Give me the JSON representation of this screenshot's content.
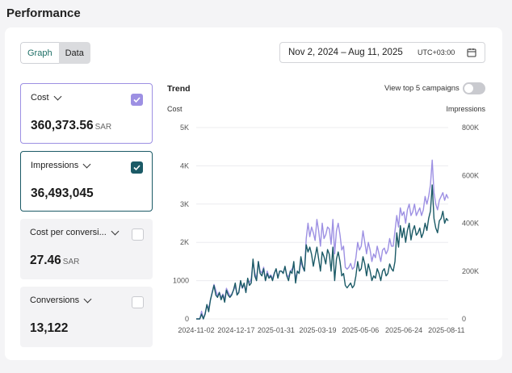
{
  "page": {
    "title": "Performance"
  },
  "view_toggle": {
    "graph_label": "Graph",
    "data_label": "Data",
    "active": "Graph"
  },
  "date_range": {
    "label": "Nov 2, 2024 – Aug 11, 2025",
    "timezone": "UTC+03:00"
  },
  "metrics": [
    {
      "label": "Cost",
      "value": "360,373.56",
      "unit": "SAR",
      "checked": true,
      "color": "#9d90e3"
    },
    {
      "label": "Impressions",
      "value": "36,493,045",
      "unit": "",
      "checked": true,
      "color": "#1b5a66"
    },
    {
      "label": "Cost per conversi...",
      "value": "27.46",
      "unit": "SAR",
      "checked": false
    },
    {
      "label": "Conversions",
      "value": "13,122",
      "unit": "",
      "checked": false
    }
  ],
  "trend": {
    "title": "Trend",
    "toggle_label": "View top 5 campaigns",
    "toggle_on": false
  },
  "colors": {
    "cost": "#9d90e3",
    "impressions": "#1b5a66",
    "accent": "#1e6f66"
  },
  "chart_data": {
    "type": "line",
    "title": "Trend",
    "ylabel_left": "Cost",
    "ylabel_right": "Impressions",
    "yticks_left": [
      "5K",
      "4K",
      "3K",
      "2K",
      "1000",
      "0"
    ],
    "yticks_right": [
      "800K",
      "600K",
      "400K",
      "200K",
      "0"
    ],
    "ylim_left": [
      0,
      5000
    ],
    "ylim_right": [
      0,
      800000
    ],
    "x_tick_labels": [
      "2024-11-02",
      "2024-12-17",
      "2025-01-31",
      "2025-03-19",
      "2025-05-06",
      "2025-06-24",
      "2025-08-11"
    ],
    "x_tick_positions": [
      0,
      45,
      90,
      137,
      185,
      234,
      282
    ],
    "series": [
      {
        "name": "Cost",
        "axis": "left",
        "points": [
          [
            0,
            0
          ],
          [
            4,
            0
          ],
          [
            6,
            200
          ],
          [
            8,
            0
          ],
          [
            10,
            150
          ],
          [
            12,
            350
          ],
          [
            14,
            280
          ],
          [
            16,
            500
          ],
          [
            18,
            700
          ],
          [
            20,
            900
          ],
          [
            22,
            750
          ],
          [
            24,
            600
          ],
          [
            26,
            700
          ],
          [
            28,
            550
          ],
          [
            30,
            650
          ],
          [
            32,
            500
          ],
          [
            34,
            800
          ],
          [
            36,
            700
          ],
          [
            38,
            600
          ],
          [
            40,
            650
          ],
          [
            42,
            750
          ],
          [
            44,
            850
          ],
          [
            46,
            650
          ],
          [
            48,
            700
          ],
          [
            50,
            950
          ],
          [
            52,
            800
          ],
          [
            54,
            900
          ],
          [
            56,
            700
          ],
          [
            58,
            1000
          ],
          [
            60,
            950
          ],
          [
            62,
            1050
          ],
          [
            64,
            1500
          ],
          [
            66,
            1200
          ],
          [
            68,
            1050
          ],
          [
            70,
            1500
          ],
          [
            72,
            1250
          ],
          [
            74,
            1200
          ],
          [
            76,
            1350
          ],
          [
            78,
            1000
          ],
          [
            80,
            1250
          ],
          [
            82,
            1100
          ],
          [
            84,
            1150
          ],
          [
            86,
            1050
          ],
          [
            88,
            1200
          ],
          [
            90,
            1300
          ],
          [
            92,
            1100
          ],
          [
            94,
            1250
          ],
          [
            96,
            1250
          ],
          [
            98,
            1200
          ],
          [
            100,
            1350
          ],
          [
            102,
            1150
          ],
          [
            104,
            1100
          ],
          [
            106,
            1250
          ],
          [
            108,
            1300
          ],
          [
            110,
            1400
          ],
          [
            112,
            1050
          ],
          [
            114,
            1250
          ],
          [
            116,
            1200
          ],
          [
            118,
            1500
          ],
          [
            120,
            1350
          ],
          [
            122,
            1250
          ],
          [
            124,
            2100
          ],
          [
            126,
            2500
          ],
          [
            128,
            2150
          ],
          [
            130,
            2400
          ],
          [
            132,
            2250
          ],
          [
            134,
            2050
          ],
          [
            136,
            2600
          ],
          [
            138,
            2300
          ],
          [
            140,
            1900
          ],
          [
            142,
            2500
          ],
          [
            144,
            2100
          ],
          [
            146,
            2200
          ],
          [
            148,
            2400
          ],
          [
            150,
            2350
          ],
          [
            152,
            1950
          ],
          [
            154,
            2600
          ],
          [
            156,
            1700
          ],
          [
            158,
            2300
          ],
          [
            160,
            2500
          ],
          [
            162,
            2200
          ],
          [
            164,
            1800
          ],
          [
            166,
            1900
          ],
          [
            168,
            1350
          ],
          [
            170,
            1300
          ],
          [
            172,
            1350
          ],
          [
            174,
            1450
          ],
          [
            176,
            1300
          ],
          [
            178,
            1350
          ],
          [
            180,
            1600
          ],
          [
            182,
            2000
          ],
          [
            184,
            1800
          ],
          [
            186,
            1900
          ],
          [
            188,
            2300
          ],
          [
            190,
            2000
          ],
          [
            192,
            1700
          ],
          [
            194,
            2000
          ],
          [
            196,
            1800
          ],
          [
            198,
            1500
          ],
          [
            200,
            1700
          ],
          [
            202,
            1600
          ],
          [
            204,
            1900
          ],
          [
            206,
            1700
          ],
          [
            208,
            1500
          ],
          [
            210,
            1800
          ],
          [
            212,
            1850
          ],
          [
            214,
            1700
          ],
          [
            216,
            1800
          ],
          [
            218,
            2100
          ],
          [
            220,
            1900
          ],
          [
            222,
            1900
          ],
          [
            224,
            2300
          ],
          [
            226,
            2700
          ],
          [
            228,
            2400
          ],
          [
            230,
            2900
          ],
          [
            232,
            2700
          ],
          [
            234,
            2800
          ],
          [
            236,
            2500
          ],
          [
            238,
            2850
          ],
          [
            240,
            3000
          ],
          [
            242,
            2700
          ],
          [
            244,
            2800
          ],
          [
            246,
            3000
          ],
          [
            248,
            2700
          ],
          [
            250,
            2800
          ],
          [
            252,
            2900
          ],
          [
            254,
            2700
          ],
          [
            256,
            2850
          ],
          [
            258,
            3200
          ],
          [
            260,
            3000
          ],
          [
            262,
            3200
          ],
          [
            264,
            3500
          ],
          [
            266,
            4150
          ],
          [
            268,
            3300
          ],
          [
            270,
            3000
          ],
          [
            272,
            2850
          ],
          [
            274,
            3100
          ],
          [
            276,
            3200
          ],
          [
            278,
            3300
          ],
          [
            280,
            3100
          ],
          [
            282,
            3250
          ],
          [
            284,
            3150
          ]
        ]
      },
      {
        "name": "Impressions",
        "axis": "right",
        "points": [
          [
            0,
            0
          ],
          [
            4,
            0
          ],
          [
            6,
            20000
          ],
          [
            8,
            0
          ],
          [
            10,
            20000
          ],
          [
            12,
            60000
          ],
          [
            14,
            30000
          ],
          [
            16,
            80000
          ],
          [
            18,
            110000
          ],
          [
            20,
            140000
          ],
          [
            22,
            100000
          ],
          [
            24,
            90000
          ],
          [
            26,
            110000
          ],
          [
            28,
            80000
          ],
          [
            30,
            100000
          ],
          [
            32,
            70000
          ],
          [
            34,
            120000
          ],
          [
            36,
            100000
          ],
          [
            38,
            90000
          ],
          [
            40,
            100000
          ],
          [
            42,
            120000
          ],
          [
            44,
            150000
          ],
          [
            46,
            100000
          ],
          [
            48,
            110000
          ],
          [
            50,
            160000
          ],
          [
            52,
            130000
          ],
          [
            54,
            150000
          ],
          [
            56,
            110000
          ],
          [
            58,
            170000
          ],
          [
            60,
            140000
          ],
          [
            62,
            150000
          ],
          [
            64,
            250000
          ],
          [
            66,
            180000
          ],
          [
            68,
            160000
          ],
          [
            70,
            240000
          ],
          [
            72,
            190000
          ],
          [
            74,
            180000
          ],
          [
            76,
            210000
          ],
          [
            78,
            160000
          ],
          [
            80,
            190000
          ],
          [
            82,
            170000
          ],
          [
            84,
            180000
          ],
          [
            86,
            160000
          ],
          [
            88,
            190000
          ],
          [
            90,
            210000
          ],
          [
            92,
            170000
          ],
          [
            94,
            200000
          ],
          [
            96,
            200000
          ],
          [
            98,
            190000
          ],
          [
            100,
            220000
          ],
          [
            102,
            180000
          ],
          [
            104,
            160000
          ],
          [
            106,
            200000
          ],
          [
            108,
            190000
          ],
          [
            110,
            240000
          ],
          [
            112,
            150000
          ],
          [
            114,
            200000
          ],
          [
            116,
            190000
          ],
          [
            118,
            260000
          ],
          [
            120,
            220000
          ],
          [
            122,
            200000
          ],
          [
            124,
            310000
          ],
          [
            126,
            280000
          ],
          [
            128,
            300000
          ],
          [
            130,
            270000
          ],
          [
            132,
            220000
          ],
          [
            134,
            260000
          ],
          [
            136,
            300000
          ],
          [
            138,
            250000
          ],
          [
            140,
            200000
          ],
          [
            142,
            280000
          ],
          [
            144,
            260000
          ],
          [
            146,
            230000
          ],
          [
            148,
            290000
          ],
          [
            150,
            270000
          ],
          [
            152,
            200000
          ],
          [
            154,
            300000
          ],
          [
            156,
            160000
          ],
          [
            158,
            250000
          ],
          [
            160,
            280000
          ],
          [
            162,
            240000
          ],
          [
            164,
            180000
          ],
          [
            166,
            190000
          ],
          [
            168,
            140000
          ],
          [
            170,
            130000
          ],
          [
            172,
            140000
          ],
          [
            174,
            150000
          ],
          [
            176,
            130000
          ],
          [
            178,
            140000
          ],
          [
            180,
            180000
          ],
          [
            182,
            240000
          ],
          [
            184,
            200000
          ],
          [
            186,
            210000
          ],
          [
            188,
            260000
          ],
          [
            190,
            230000
          ],
          [
            192,
            180000
          ],
          [
            194,
            230000
          ],
          [
            196,
            200000
          ],
          [
            198,
            160000
          ],
          [
            200,
            180000
          ],
          [
            202,
            170000
          ],
          [
            204,
            210000
          ],
          [
            206,
            190000
          ],
          [
            208,
            160000
          ],
          [
            210,
            200000
          ],
          [
            212,
            210000
          ],
          [
            214,
            180000
          ],
          [
            216,
            190000
          ],
          [
            218,
            230000
          ],
          [
            220,
            210000
          ],
          [
            222,
            200000
          ],
          [
            224,
            240000
          ],
          [
            226,
            360000
          ],
          [
            228,
            300000
          ],
          [
            230,
            390000
          ],
          [
            232,
            340000
          ],
          [
            234,
            380000
          ],
          [
            236,
            320000
          ],
          [
            238,
            370000
          ],
          [
            240,
            400000
          ],
          [
            242,
            330000
          ],
          [
            244,
            370000
          ],
          [
            246,
            390000
          ],
          [
            248,
            350000
          ],
          [
            250,
            360000
          ],
          [
            252,
            380000
          ],
          [
            254,
            340000
          ],
          [
            256,
            360000
          ],
          [
            258,
            400000
          ],
          [
            260,
            370000
          ],
          [
            262,
            420000
          ],
          [
            264,
            450000
          ],
          [
            266,
            560000
          ],
          [
            268,
            420000
          ],
          [
            270,
            380000
          ],
          [
            272,
            360000
          ],
          [
            274,
            410000
          ],
          [
            276,
            420000
          ],
          [
            278,
            450000
          ],
          [
            280,
            400000
          ],
          [
            282,
            420000
          ],
          [
            284,
            410000
          ]
        ]
      }
    ]
  }
}
